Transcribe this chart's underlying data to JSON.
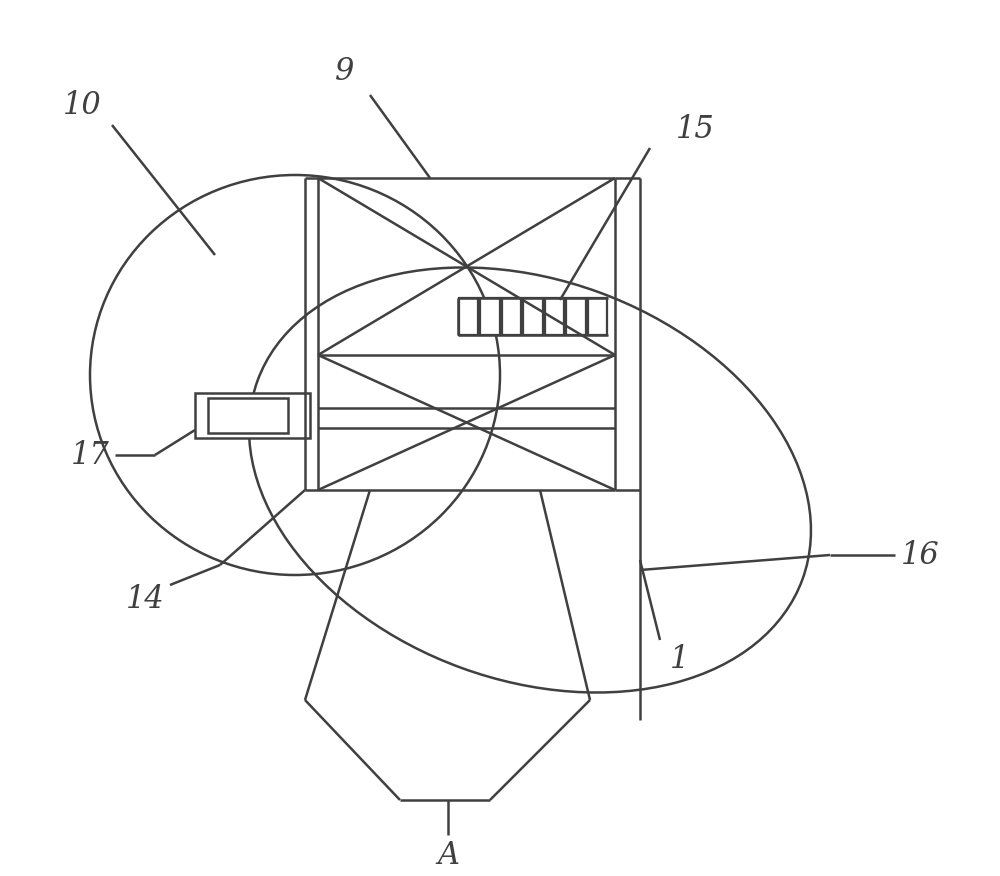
{
  "bg_color": "#ffffff",
  "line_color": "#404040",
  "line_width": 1.8,
  "figsize": [
    10.0,
    8.76
  ],
  "dpi": 100,
  "label_fontsize": 22
}
